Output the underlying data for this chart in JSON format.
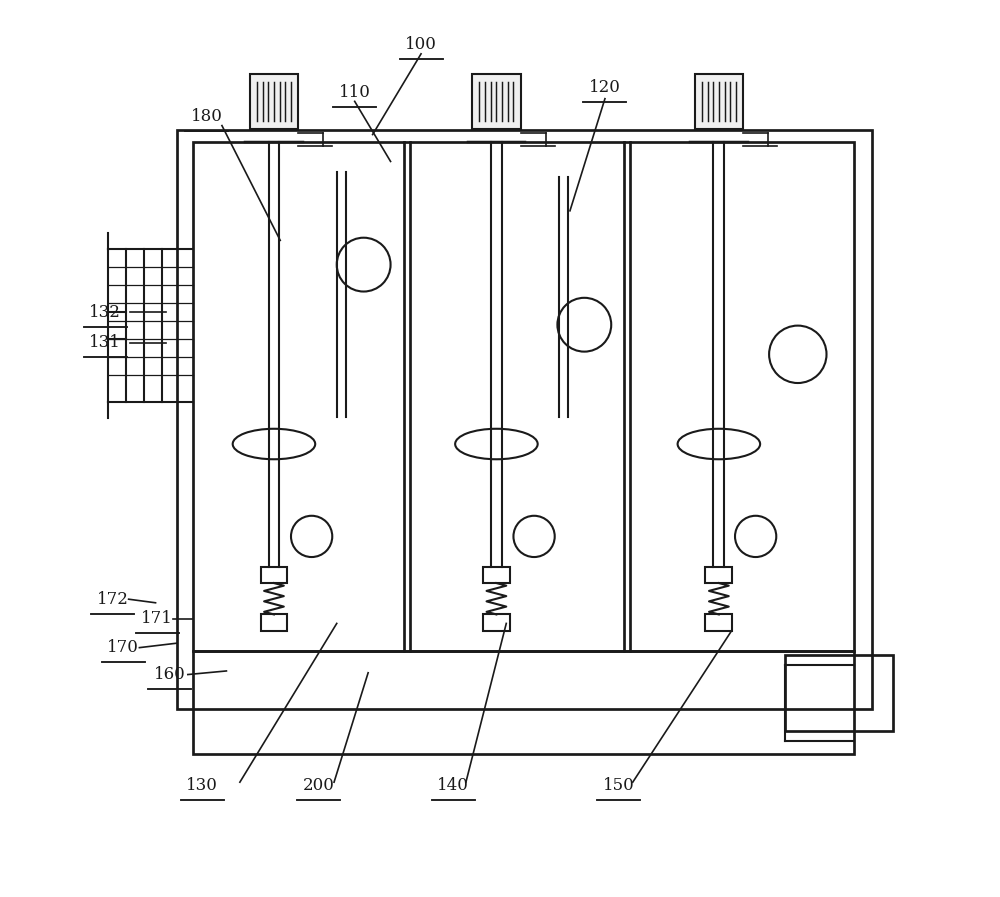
{
  "bg_color": "#ffffff",
  "line_color": "#1a1a1a",
  "lw": 1.5,
  "fig_width": 10.0,
  "fig_height": 8.97
}
